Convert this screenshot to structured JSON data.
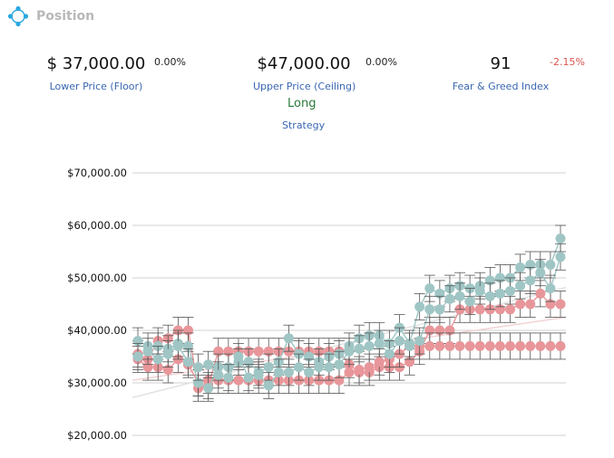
{
  "header": {
    "title": "Position",
    "icon": "crosshair-icon",
    "icon_color": "#29a8e0"
  },
  "metrics": [
    {
      "value": "$ 37,000.00",
      "change": "0.00%",
      "label": "Lower Price (Floor)",
      "negative": false
    },
    {
      "value": "$47,000.00",
      "change": "0.00%",
      "label": "Upper Price (Ceiling)",
      "negative": false
    },
    {
      "value": "91",
      "change": "-2.15%",
      "label": "Fear & Greed Index",
      "negative": true
    }
  ],
  "strategy": {
    "value": "Long",
    "label": "Strategy"
  },
  "chart_data": {
    "type": "line",
    "y_ticks": [
      "$70,000.00",
      "$60,000.00",
      "$50,000.00",
      "$40,000.00",
      "$30,000.00",
      "$20,000.00"
    ],
    "ylim": [
      20000,
      70000
    ],
    "grid": true,
    "colors": {
      "red": "#e8969a",
      "teal": "#9fc6c5",
      "error": "#555555",
      "grid": "#d0d0d0"
    },
    "series": [
      {
        "color": "red",
        "values": [
          35500,
          34500,
          38000,
          38500,
          40000,
          40000,
          29000,
          29500,
          36000,
          36000,
          36000,
          36000,
          36000,
          36000,
          36000,
          36000,
          36000,
          36000,
          36000,
          36000,
          36000,
          33500,
          32000,
          32000,
          33000,
          33000,
          33000,
          34000,
          36000,
          40000,
          40000,
          40000,
          44000,
          44000,
          44000,
          44000,
          44000,
          44000,
          45000,
          45000,
          47000,
          45000,
          45000
        ]
      },
      {
        "color": "red",
        "values": [
          34500,
          33000,
          33000,
          32500,
          34500,
          33500,
          30000,
          30500,
          30500,
          30500,
          30500,
          30500,
          30500,
          30500,
          30500,
          30500,
          30500,
          30500,
          30500,
          30500,
          30500,
          32000,
          32500,
          33000,
          34000,
          34500,
          35500,
          37000,
          37000,
          37000,
          37000,
          37000,
          37000,
          37000,
          37000,
          37000,
          37000,
          37000,
          37000,
          37000,
          37000,
          37000,
          37000
        ]
      },
      {
        "color": "teal",
        "values": [
          38000,
          37000,
          37000,
          36500,
          37500,
          37000,
          30000,
          29000,
          33000,
          33000,
          34000,
          34000,
          32000,
          33000,
          34000,
          38500,
          35500,
          35000,
          34000,
          35000,
          35500,
          37000,
          38500,
          39000,
          39000,
          37500,
          40500,
          37500,
          44500,
          48000,
          47000,
          48000,
          48500,
          48000,
          48500,
          49500,
          50000,
          50000,
          52000,
          52500,
          52500,
          52500,
          57500
        ]
      },
      {
        "color": "teal",
        "values": [
          35000,
          36000,
          34500,
          35500,
          37000,
          34000,
          33000,
          33500,
          31500,
          31000,
          35000,
          31000,
          31500,
          29500,
          32000,
          32000,
          33000,
          32000,
          33000,
          33000,
          33500,
          36000,
          36500,
          37000,
          37500,
          35500,
          38000,
          37000,
          38000,
          44000,
          44000,
          46000,
          46500,
          45500,
          47500,
          46500,
          47000,
          47500,
          48500,
          49500,
          51000,
          48000,
          54000
        ]
      }
    ]
  }
}
